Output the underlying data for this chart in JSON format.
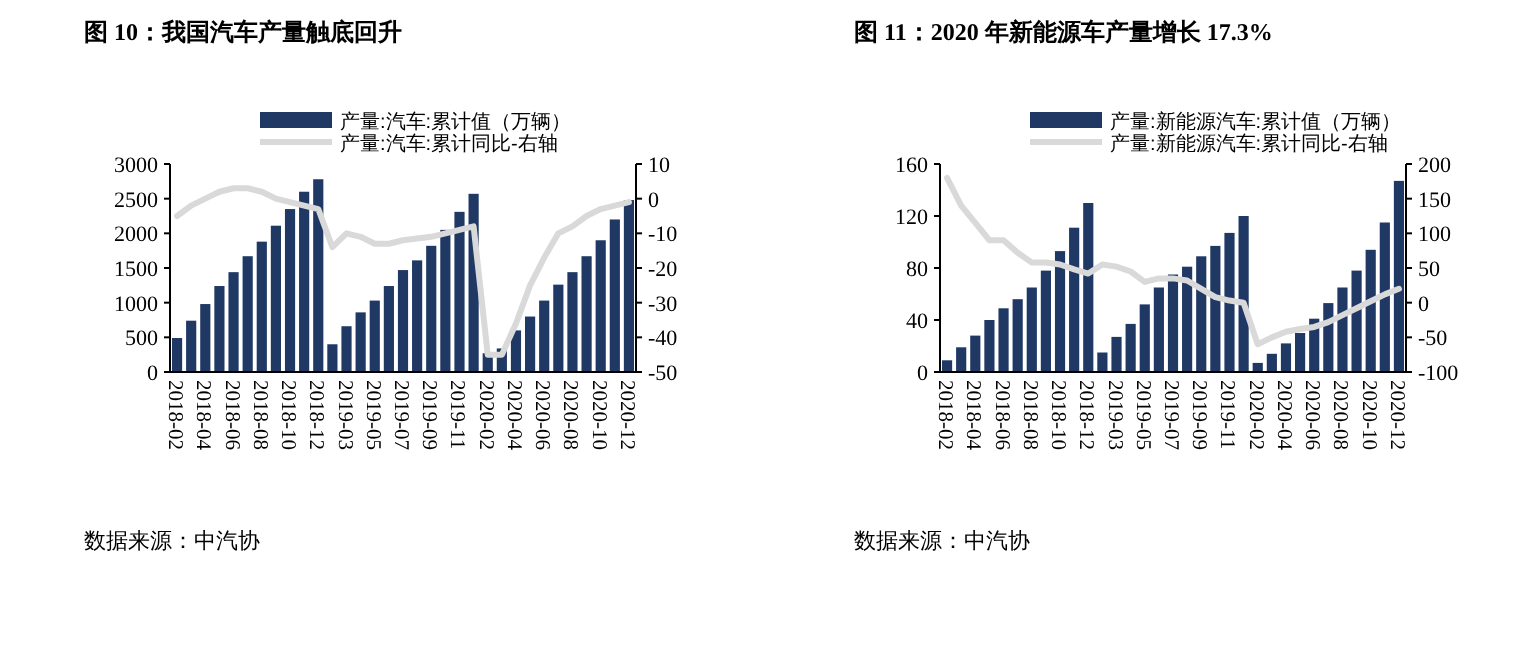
{
  "chart_data": [
    {
      "type": "bar",
      "title": "图 10：我国汽车产量触底回升",
      "annotations": [
        "数据来源：中汽协"
      ],
      "categories": [
        "2018-02",
        null,
        "2018-04",
        null,
        "2018-06",
        null,
        "2018-08",
        null,
        "2018-10",
        null,
        "2018-12",
        null,
        "2019-03",
        null,
        "2019-05",
        null,
        "2019-07",
        null,
        "2019-09",
        null,
        "2019-11",
        null,
        "2020-02",
        null,
        "2020-04",
        null,
        "2020-06",
        null,
        "2020-08",
        null,
        "2020-10",
        null,
        "2020-12"
      ],
      "series": [
        {
          "name": "产量:汽车:累计值（万辆）",
          "color": "#1f3864",
          "values": [
            490,
            740,
            980,
            1240,
            1440,
            1670,
            1880,
            2110,
            2350,
            2600,
            2780,
            400,
            660,
            860,
            1030,
            1240,
            1470,
            1610,
            1820,
            2050,
            2310,
            2570,
            270,
            340,
            600,
            800,
            1030,
            1260,
            1440,
            1670,
            1900,
            2200,
            2480
          ]
        },
        {
          "name": "产量:汽车:累计同比-右轴",
          "type": "line",
          "axis": "y2",
          "color": "#d9d9d9",
          "values": [
            -5,
            -2,
            0,
            2,
            3,
            3,
            2,
            0,
            -1,
            -2,
            -3,
            -14,
            -10,
            -11,
            -13,
            -13,
            -12,
            -11.5,
            -11,
            -10,
            -9,
            -8,
            -45,
            -45,
            -36,
            -25,
            -17,
            -10,
            -8,
            -5,
            -3,
            -2,
            -1
          ]
        }
      ],
      "ylim": [
        0,
        3000
      ],
      "yticks": [
        0,
        500,
        1000,
        1500,
        2000,
        2500,
        3000
      ],
      "y2lim": [
        -50,
        10
      ],
      "y2ticks": [
        -50,
        -40,
        -30,
        -20,
        -10,
        0,
        10
      ],
      "legend": "top"
    },
    {
      "type": "bar",
      "title": "图 11：2020 年新能源车产量增长 17.3%",
      "annotations": [
        "数据来源：中汽协"
      ],
      "categories": [
        "2018-02",
        null,
        "2018-04",
        null,
        "2018-06",
        null,
        "2018-08",
        null,
        "2018-10",
        null,
        "2018-12",
        null,
        "2019-03",
        null,
        "2019-05",
        null,
        "2019-07",
        null,
        "2019-09",
        null,
        "2019-11",
        null,
        "2020-02",
        null,
        "2020-04",
        null,
        "2020-06",
        null,
        "2020-08",
        null,
        "2020-10",
        null,
        "2020-12"
      ],
      "series": [
        {
          "name": "产量:新能源汽车:累计值（万辆）",
          "color": "#1f3864",
          "values": [
            9,
            19,
            28,
            40,
            49,
            56,
            65,
            78,
            93,
            111,
            130,
            15,
            27,
            37,
            52,
            65,
            75,
            81,
            89,
            97,
            107,
            120,
            7,
            14,
            22,
            30,
            41,
            53,
            65,
            78,
            94,
            115,
            147
          ]
        },
        {
          "name": "产量:新能源汽车:累计同比-右轴",
          "type": "line",
          "axis": "y2",
          "color": "#d9d9d9",
          "values": [
            180,
            140,
            115,
            90,
            90,
            72,
            58,
            58,
            55,
            48,
            42,
            55,
            52,
            45,
            30,
            35,
            35,
            32,
            20,
            8,
            3,
            0,
            -60,
            -50,
            -42,
            -38,
            -35,
            -28,
            -18,
            -8,
            2,
            12,
            20
          ]
        }
      ],
      "ylim": [
        0,
        160
      ],
      "yticks": [
        0,
        40,
        80,
        120,
        160
      ],
      "y2lim": [
        -100,
        200
      ],
      "y2ticks": [
        -100,
        -50,
        0,
        50,
        100,
        150,
        200
      ],
      "legend": "top"
    }
  ]
}
